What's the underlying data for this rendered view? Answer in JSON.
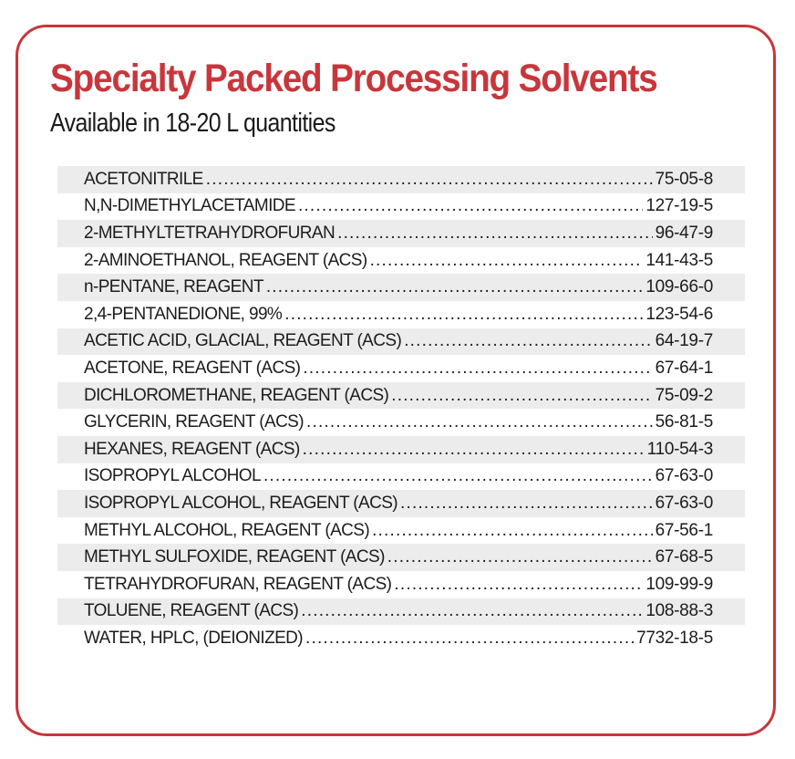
{
  "title": "Specialty Packed Processing Solvents",
  "subtitle": "Available in 18-20 L quantities",
  "colors": {
    "accent": "#c8363c",
    "row_shade": "#ececec",
    "text": "#1c1c1c"
  },
  "solvents": [
    {
      "name": "ACETONITRILE",
      "cas": "75-05-8"
    },
    {
      "name": "N,N-DIMETHYLACETAMIDE",
      "cas": "127-19-5"
    },
    {
      "name": "2-METHYLTETRAHYDROFURAN",
      "cas": "96-47-9"
    },
    {
      "name": "2-AMINOETHANOL, REAGENT (ACS)",
      "cas": "141-43-5"
    },
    {
      "name": "n-PENTANE, REAGENT",
      "cas": "109-66-0"
    },
    {
      "name": "2,4-PENTANEDIONE, 99%",
      "cas": "123-54-6"
    },
    {
      "name": "ACETIC ACID, GLACIAL, REAGENT (ACS)",
      "cas": "64-19-7"
    },
    {
      "name": "ACETONE, REAGENT (ACS)",
      "cas": "67-64-1"
    },
    {
      "name": "DICHLOROMETHANE, REAGENT (ACS)",
      "cas": "75-09-2"
    },
    {
      "name": "GLYCERIN, REAGENT (ACS)",
      "cas": "56-81-5"
    },
    {
      "name": "HEXANES, REAGENT (ACS)",
      "cas": "110-54-3"
    },
    {
      "name": "ISOPROPYL ALCOHOL",
      "cas": "67-63-0"
    },
    {
      "name": "ISOPROPYL ALCOHOL, REAGENT (ACS)",
      "cas": "67-63-0"
    },
    {
      "name": "METHYL ALCOHOL, REAGENT (ACS)",
      "cas": "67-56-1"
    },
    {
      "name": "METHYL SULFOXIDE, REAGENT (ACS)",
      "cas": "67-68-5"
    },
    {
      "name": "TETRAHYDROFURAN, REAGENT (ACS)",
      "cas": "109-99-9"
    },
    {
      "name": "TOLUENE, REAGENT (ACS)",
      "cas": "108-88-3"
    },
    {
      "name": "WATER, HPLC, (DEIONIZED)",
      "cas": "7732-18-5"
    }
  ]
}
